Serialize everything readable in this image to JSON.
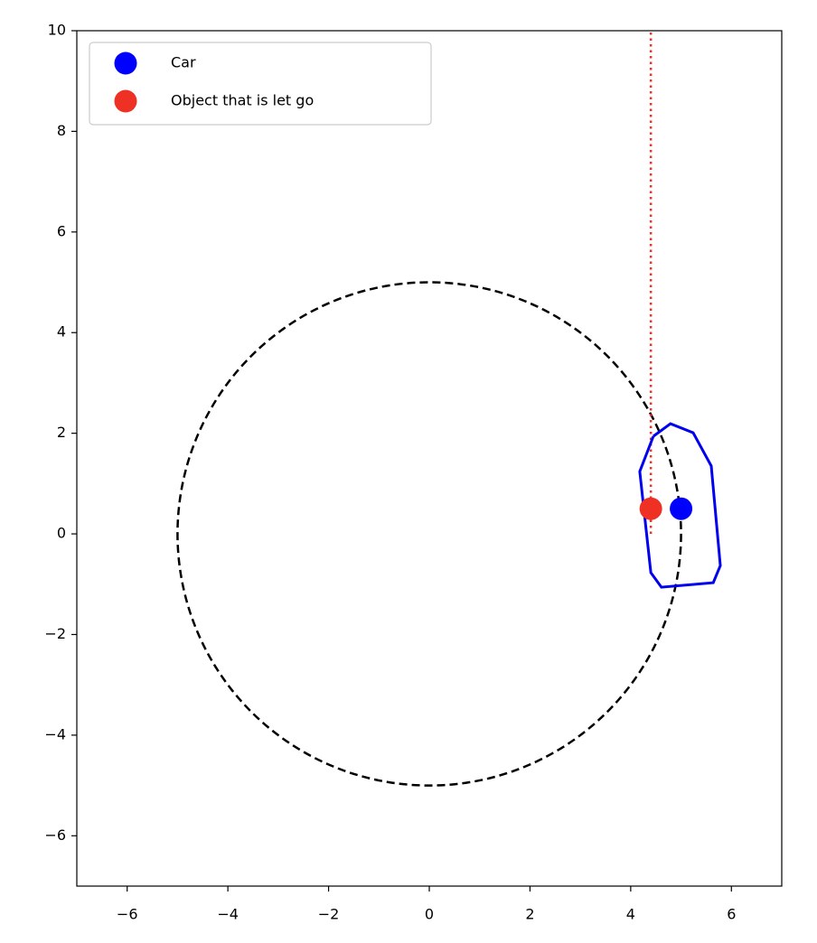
{
  "chart_data": {
    "type": "scatter",
    "xlim": [
      -7,
      7
    ],
    "ylim": [
      -7,
      10
    ],
    "xticks": [
      {
        "value": -6,
        "label": "−6"
      },
      {
        "value": -4,
        "label": "−4"
      },
      {
        "value": -2,
        "label": "−2"
      },
      0,
      2,
      4,
      6
    ],
    "yticks": [
      {
        "value": -6,
        "label": "−6"
      },
      {
        "value": -4,
        "label": "−4"
      },
      {
        "value": -2,
        "label": "−2"
      },
      0,
      2,
      4,
      6,
      8,
      10
    ],
    "legend": "upper left",
    "series": [
      {
        "name": "Car",
        "color": "#0000ff",
        "x": [
          5
        ],
        "y": [
          0.5
        ]
      },
      {
        "name": "Object that is let go",
        "color": "#ee3124",
        "x": [
          4.4
        ],
        "y": [
          0.5
        ]
      }
    ],
    "lines": [
      {
        "color": "#ee3124",
        "style": "dotted",
        "x": [
          4.4,
          4.4
        ],
        "y": [
          0,
          10
        ]
      },
      {
        "color": "#0000ee",
        "style": "solid",
        "x": [
          4.45,
          4.79,
          5.24,
          5.6,
          5.78,
          5.64,
          4.61,
          4.4,
          4.18,
          4.45
        ],
        "y": [
          1.94,
          2.19,
          2.01,
          1.35,
          -0.63,
          -0.97,
          -1.06,
          -0.77,
          1.24,
          1.94
        ]
      }
    ],
    "circle": {
      "center": [
        0,
        0
      ],
      "radius": 5,
      "color": "#000000",
      "style": "dashed"
    }
  }
}
